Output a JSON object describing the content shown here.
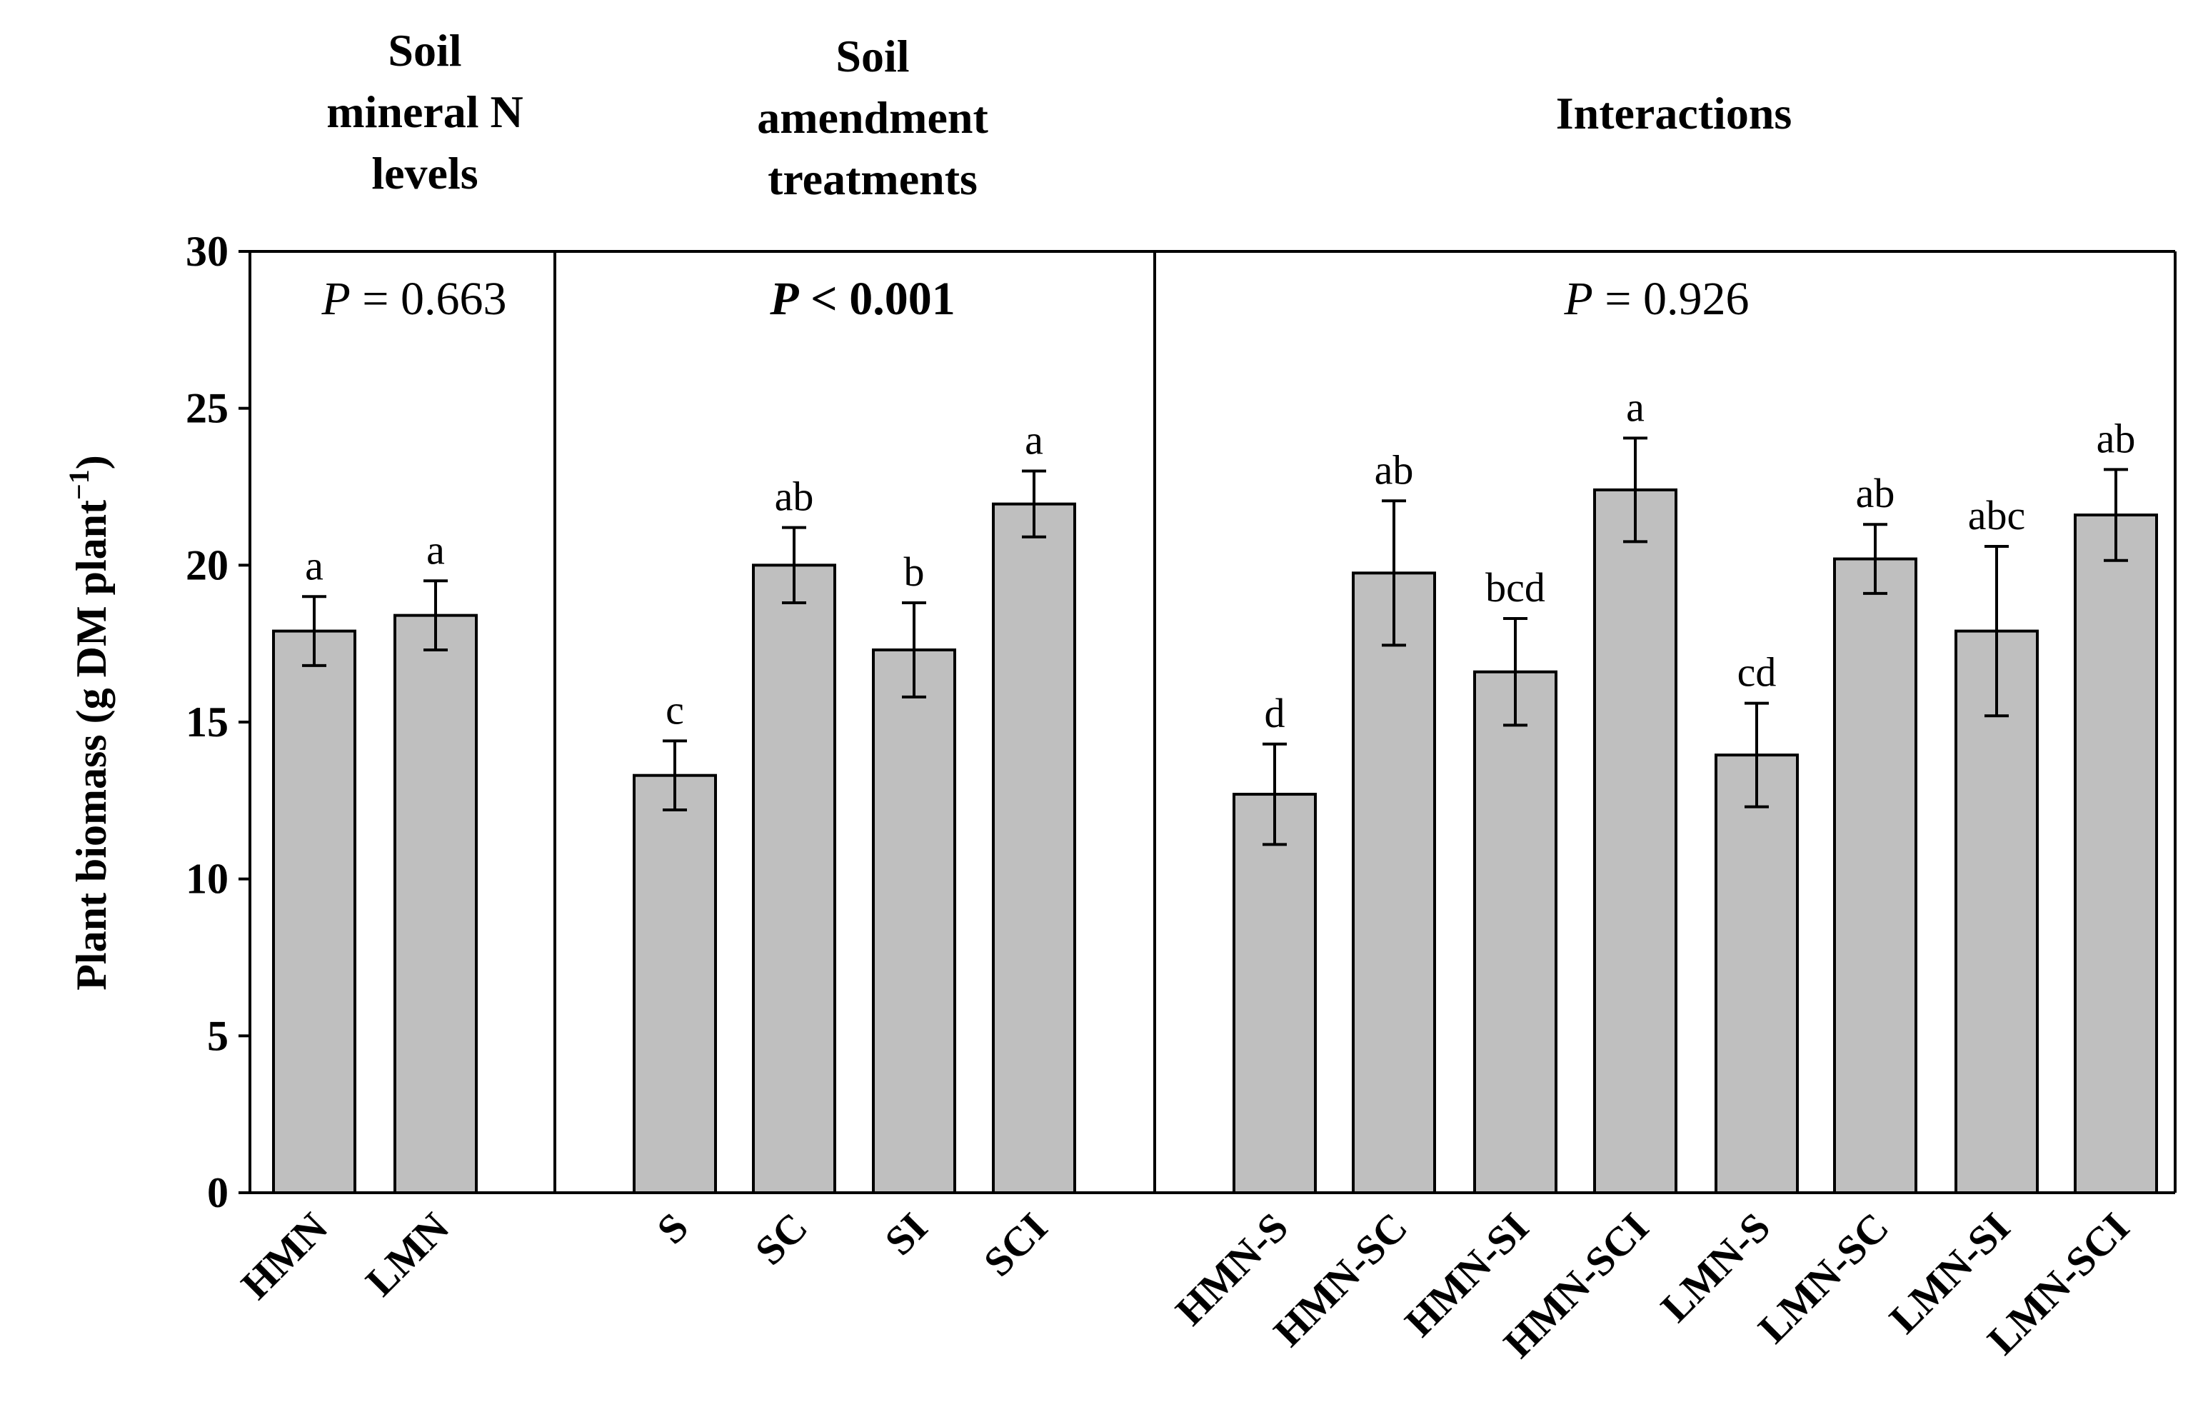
{
  "chart_data": {
    "type": "bar",
    "ylabel": "Plant biomass (g DM plant",
    "ylabel_sup": "−1",
    "ylabel_close": ")",
    "ylim": [
      0,
      30
    ],
    "yticks": [
      "0",
      "5",
      "10",
      "15",
      "20",
      "25",
      "30"
    ],
    "bar_color": "#bfbfbf",
    "panels": [
      {
        "header_lines": [
          "Soil",
          "mineral N",
          "levels"
        ],
        "p_label": "P",
        "p_rest": " = 0.663",
        "p_bold": false,
        "categories": [
          "HMN",
          "LMN"
        ],
        "values": [
          17.9,
          18.4
        ],
        "errors": [
          1.1,
          1.1
        ],
        "letters": [
          "a",
          "a"
        ]
      },
      {
        "header_lines": [
          "Soil",
          "amendment",
          "treatments"
        ],
        "p_label": "P",
        "p_rest": " < 0.001",
        "p_bold": true,
        "categories": [
          "S",
          "SC",
          "SI",
          "SCI"
        ],
        "values": [
          13.3,
          20.0,
          17.3,
          21.95
        ],
        "errors": [
          1.1,
          1.2,
          1.5,
          1.05
        ],
        "letters": [
          "c",
          "ab",
          "b",
          "a"
        ]
      },
      {
        "header_lines": [
          "Interactions"
        ],
        "p_label": "P",
        "p_rest": " = 0.926",
        "p_bold": false,
        "categories": [
          "HMN-S",
          "HMN-SC",
          "HMN-SI",
          "HMN-SCI",
          "LMN-S",
          "LMN-SC",
          "LMN-SI",
          "LMN-SCI"
        ],
        "values": [
          12.7,
          19.75,
          16.6,
          22.4,
          13.95,
          20.2,
          17.9,
          21.6
        ],
        "errors": [
          1.6,
          2.3,
          1.7,
          1.65,
          1.65,
          1.1,
          2.7,
          1.45
        ],
        "letters": [
          "d",
          "ab",
          "bcd",
          "a",
          "cd",
          "ab",
          "abc",
          "ab"
        ]
      }
    ]
  }
}
